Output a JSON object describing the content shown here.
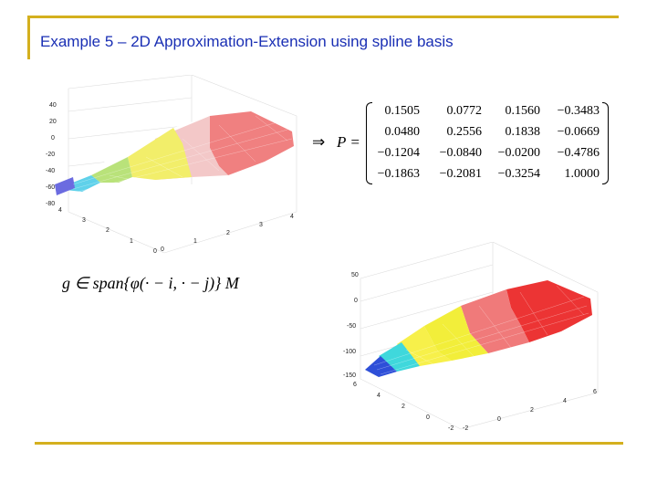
{
  "slide": {
    "title": "Example 5 – 2D Approximation-Extension using spline basis",
    "accent_color": "#d4b01e",
    "title_color": "#1a2fb4"
  },
  "matrix": {
    "implies": "⇒",
    "label": "P =",
    "rows": [
      [
        "0.1505",
        "0.0772",
        "0.1560",
        "−0.3483"
      ],
      [
        "0.0480",
        "0.2556",
        "0.1838",
        "−0.0669"
      ],
      [
        "−0.1204",
        "−0.0840",
        "−0.0200",
        "−0.4786"
      ],
      [
        "−0.1863",
        "−0.2081",
        "−0.3254",
        "1.0000"
      ]
    ]
  },
  "formula": {
    "text": "g ∈ span{φ(· − i, · − j)} M"
  },
  "plot1": {
    "z_ticks": [
      "40",
      "20",
      "0",
      "-20",
      "-40",
      "-60",
      "-80"
    ],
    "y_ticks": [
      "4",
      "3",
      "2",
      "1",
      "0"
    ],
    "x_ticks": [
      "0",
      "1",
      "2",
      "3",
      "4"
    ]
  },
  "plot2": {
    "z_ticks": [
      "50",
      "0",
      "-50",
      "-100",
      "-150"
    ],
    "y_ticks": [
      "6",
      "4",
      "2",
      "0",
      "-2"
    ],
    "x_ticks": [
      "-2",
      "0",
      "2",
      "4",
      "6"
    ]
  }
}
